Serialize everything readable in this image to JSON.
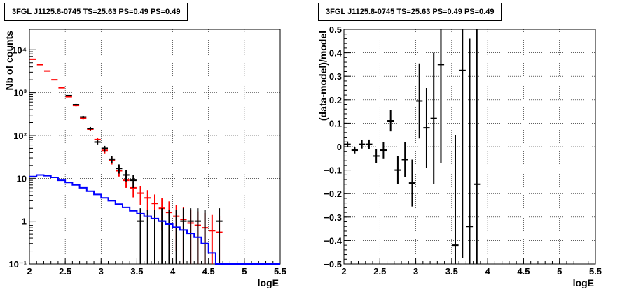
{
  "chart_data": [
    {
      "type": "step-histogram",
      "title": "3FGL J1125.8-0745 TS=25.63 PS=0.49 PS=0.49",
      "xlabel": "logE",
      "ylabel": "Nb of counts",
      "xlim": [
        2,
        5.5
      ],
      "ylim": [
        0.1,
        30000
      ],
      "y_scale": "log",
      "grid": true,
      "x_ticks": [
        "2",
        "2.5",
        "3",
        "3.5",
        "4",
        "4.5",
        "5",
        "5.5"
      ],
      "y_ticks": [
        "10⁻¹",
        "1",
        "10",
        "10²",
        "10³",
        "10⁴"
      ],
      "series": [
        {
          "color": "#ff0000",
          "style": "points-with-errors",
          "x": [
            2.05,
            2.15,
            2.25,
            2.35,
            2.45,
            2.55,
            2.65,
            2.75,
            2.85,
            2.95,
            3.05,
            3.15,
            3.25,
            3.35,
            3.45,
            3.55,
            3.65,
            3.75,
            3.85,
            3.95,
            4.05,
            4.15,
            4.25,
            4.35,
            4.45,
            4.55,
            4.65
          ],
          "y": [
            6000,
            4500,
            3200,
            2000,
            1300,
            800,
            500,
            250,
            140,
            80,
            45,
            26,
            15,
            9,
            6,
            4.5,
            3.5,
            2.6,
            2.0,
            1.6,
            1.3,
            1.1,
            0.9,
            0.8,
            0.7,
            0.6,
            0.55
          ],
          "y_err": [
            70,
            60,
            50,
            40,
            35,
            28,
            22,
            16,
            12,
            9,
            7,
            5,
            4,
            3,
            2.4,
            2.1,
            1.8,
            1.6,
            1.4,
            1.3,
            1.1,
            1.05,
            0.95,
            0.9,
            0.85,
            0.8,
            0.75
          ]
        },
        {
          "color": "#000000",
          "style": "points-with-errors",
          "x": [
            2.55,
            2.65,
            2.75,
            2.85,
            2.95,
            3.05,
            3.15,
            3.25,
            3.35,
            3.45,
            3.55,
            3.65,
            3.75,
            3.85,
            3.95,
            4.05,
            4.15,
            4.25,
            4.35,
            4.45,
            4.65
          ],
          "y": [
            850,
            520,
            270,
            145,
            70,
            50,
            28,
            17,
            12,
            9,
            1,
            0,
            0,
            1,
            0,
            0,
            1,
            1,
            1,
            0,
            1
          ],
          "y_err": [
            29,
            23,
            16,
            12,
            8.4,
            7.1,
            5.3,
            4.1,
            3.5,
            3,
            1,
            0,
            0,
            1,
            0,
            0,
            1,
            1,
            1,
            0,
            1
          ]
        },
        {
          "color": "#0000ff",
          "style": "step-line",
          "x_edges": [
            2.0,
            2.1,
            2.2,
            2.3,
            2.4,
            2.5,
            2.6,
            2.7,
            2.8,
            2.9,
            3.0,
            3.1,
            3.2,
            3.3,
            3.4,
            3.5,
            3.6,
            3.7,
            3.8,
            3.9,
            4.0,
            4.1,
            4.2,
            4.3,
            4.4,
            4.5,
            4.6,
            4.7,
            4.8,
            4.9,
            5.0,
            5.1,
            5.2,
            5.3,
            5.4,
            5.5
          ],
          "y": [
            11,
            12,
            11.5,
            10.5,
            9,
            8,
            7,
            6,
            5,
            4.2,
            3.5,
            3.0,
            2.5,
            2.1,
            1.75,
            1.5,
            1.3,
            1.15,
            1.0,
            0.85,
            0.72,
            0.62,
            0.52,
            0.42,
            0.3,
            0.18,
            0.1,
            0.1,
            0.1,
            0.1,
            0.1,
            0.1,
            0.1,
            0.1,
            0.1
          ]
        }
      ]
    },
    {
      "type": "scatter",
      "title": "3FGL J1125.8-0745 TS=25.63 PS=0.49 PS=0.49",
      "xlabel": "logE",
      "ylabel": "(data-model)/model",
      "xlim": [
        2,
        5.5
      ],
      "ylim": [
        -0.5,
        0.5
      ],
      "grid": true,
      "x_ticks": [
        "2",
        "2.5",
        "3",
        "3.5",
        "4",
        "4.5",
        "5",
        "5.5"
      ],
      "y_ticks": [
        "−0.5",
        "−0.4",
        "−0.3",
        "−0.2",
        "−0.1",
        "0",
        "0.1",
        "0.2",
        "0.3",
        "0.4",
        "0.5"
      ],
      "series": [
        {
          "color": "#000000",
          "style": "points-with-errors",
          "x": [
            2.05,
            2.15,
            2.25,
            2.35,
            2.45,
            2.55,
            2.65,
            2.75,
            2.85,
            2.95,
            3.05,
            3.15,
            3.25,
            3.35,
            3.55,
            3.65,
            3.75,
            3.85
          ],
          "y": [
            0.01,
            -0.015,
            0.01,
            0.01,
            -0.04,
            -0.015,
            0.11,
            -0.1,
            -0.055,
            -0.155,
            0.195,
            0.08,
            0.12,
            0.35,
            -0.42,
            0.325,
            -0.34,
            -0.16
          ],
          "y_err": [
            0.012,
            0.014,
            0.018,
            0.02,
            0.03,
            0.035,
            0.045,
            0.06,
            0.075,
            0.1,
            0.16,
            0.17,
            0.28,
            0.42,
            0.47,
            0.8,
            0.8,
            0.8
          ]
        }
      ]
    }
  ]
}
